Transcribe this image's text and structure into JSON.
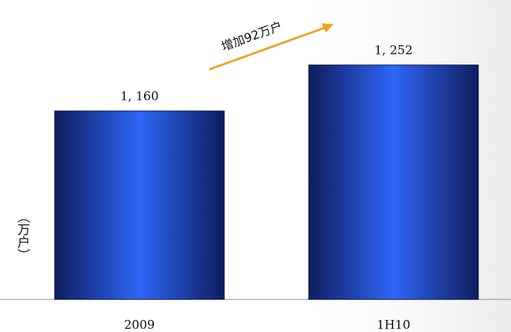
{
  "chart_data": {
    "type": "bar",
    "annotation": "增加92万户",
    "y_label": "（万户）",
    "categories": [
      "2009",
      "1H10"
    ],
    "values": [
      1160,
      1252
    ],
    "value_labels": [
      "1, 160",
      "1, 252"
    ],
    "color": "#2e66f8",
    "ylim": [
      783,
      1382
    ]
  }
}
